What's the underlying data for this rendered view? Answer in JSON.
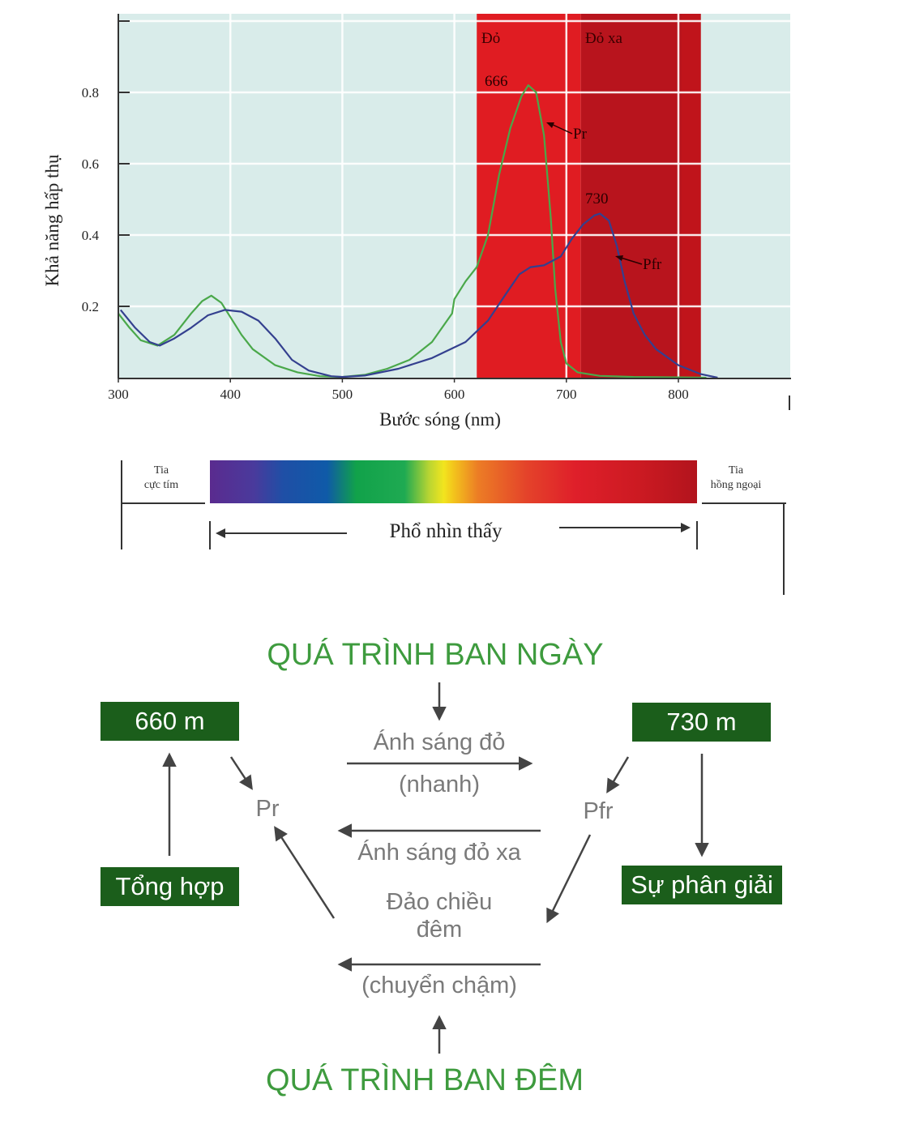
{
  "chart_data": {
    "type": "line",
    "ylabel": "Khả năng hấp thụ",
    "xlabel": "Bước sóng (nm)",
    "x_ticks": [
      "300",
      "400",
      "500",
      "600",
      "700",
      "800"
    ],
    "y_ticks": [
      "0.2",
      "0.4",
      "0.6",
      "0.8"
    ],
    "xlim": [
      300,
      900
    ],
    "ylim": [
      0,
      1.0
    ],
    "grid": true,
    "bands": [
      {
        "label": "Đỏ",
        "from": 620,
        "to": 713,
        "color": "#e01c22"
      },
      {
        "label": "Đỏ xa",
        "from": 713,
        "to": 820,
        "color": "#b8141d"
      }
    ],
    "series": [
      {
        "name": "Pr",
        "color": "#4aa84a",
        "points": [
          [
            300,
            0.18
          ],
          [
            310,
            0.14
          ],
          [
            320,
            0.105
          ],
          [
            335,
            0.09
          ],
          [
            350,
            0.12
          ],
          [
            365,
            0.18
          ],
          [
            375,
            0.215
          ],
          [
            383,
            0.23
          ],
          [
            392,
            0.21
          ],
          [
            400,
            0.17
          ],
          [
            410,
            0.12
          ],
          [
            420,
            0.08
          ],
          [
            440,
            0.035
          ],
          [
            460,
            0.015
          ],
          [
            480,
            0.004
          ],
          [
            500,
            0.002
          ],
          [
            520,
            0.008
          ],
          [
            540,
            0.025
          ],
          [
            560,
            0.05
          ],
          [
            580,
            0.1
          ],
          [
            598,
            0.18
          ],
          [
            600,
            0.22
          ],
          [
            610,
            0.27
          ],
          [
            620,
            0.31
          ],
          [
            630,
            0.4
          ],
          [
            640,
            0.57
          ],
          [
            650,
            0.7
          ],
          [
            660,
            0.79
          ],
          [
            666,
            0.82
          ],
          [
            673,
            0.8
          ],
          [
            680,
            0.68
          ],
          [
            686,
            0.45
          ],
          [
            690,
            0.25
          ],
          [
            695,
            0.1
          ],
          [
            700,
            0.04
          ],
          [
            710,
            0.015
          ],
          [
            730,
            0.005
          ],
          [
            760,
            0.002
          ],
          [
            800,
            0.001
          ],
          [
            825,
            0.0
          ]
        ]
      },
      {
        "name": "Pfr",
        "color": "#34408f",
        "points": [
          [
            302,
            0.19
          ],
          [
            315,
            0.14
          ],
          [
            328,
            0.1
          ],
          [
            337,
            0.09
          ],
          [
            350,
            0.11
          ],
          [
            365,
            0.14
          ],
          [
            380,
            0.175
          ],
          [
            395,
            0.19
          ],
          [
            410,
            0.185
          ],
          [
            425,
            0.16
          ],
          [
            440,
            0.11
          ],
          [
            455,
            0.05
          ],
          [
            470,
            0.02
          ],
          [
            490,
            0.004
          ],
          [
            500,
            0.002
          ],
          [
            520,
            0.006
          ],
          [
            550,
            0.025
          ],
          [
            580,
            0.055
          ],
          [
            610,
            0.1
          ],
          [
            630,
            0.16
          ],
          [
            645,
            0.23
          ],
          [
            658,
            0.29
          ],
          [
            668,
            0.31
          ],
          [
            680,
            0.315
          ],
          [
            695,
            0.34
          ],
          [
            705,
            0.39
          ],
          [
            715,
            0.43
          ],
          [
            725,
            0.455
          ],
          [
            730,
            0.46
          ],
          [
            738,
            0.44
          ],
          [
            745,
            0.37
          ],
          [
            752,
            0.27
          ],
          [
            760,
            0.18
          ],
          [
            770,
            0.12
          ],
          [
            780,
            0.08
          ],
          [
            800,
            0.035
          ],
          [
            820,
            0.01
          ],
          [
            835,
            0.0
          ]
        ]
      }
    ],
    "annotations": [
      {
        "text": "666",
        "x": 666
      },
      {
        "text": "730",
        "x": 730
      },
      {
        "text": "Pr"
      },
      {
        "text": "Pfr"
      }
    ]
  },
  "spectrum": {
    "uv_label_1": "Tia",
    "uv_label_2": "cực tím",
    "ir_label_1": "Tia",
    "ir_label_2": "hồng ngoại",
    "visible_label": "Phổ nhìn thấy"
  },
  "diagram": {
    "day_heading": "QUÁ TRÌNH BAN NGÀY",
    "night_heading": "QUÁ TRÌNH BAN ĐÊM",
    "box_660": "660 m",
    "box_730": "730 m",
    "box_synthesis": "Tổng hợp",
    "box_decomposition": "Sự phân giải",
    "pr_label": "Pr",
    "pfr_label": "Pfr",
    "red_light": "Ánh sáng đỏ",
    "fast": "(nhanh)",
    "far_red_light": "Ánh sáng đỏ xa",
    "dark_reversion_1": "Đảo chiều",
    "dark_reversion_2": "đêm",
    "slow": "(chuyển chậm)",
    "text_color": "#7a7a7a",
    "box_color": "#1b5e1b",
    "heading_color": "#3e9b3e"
  }
}
